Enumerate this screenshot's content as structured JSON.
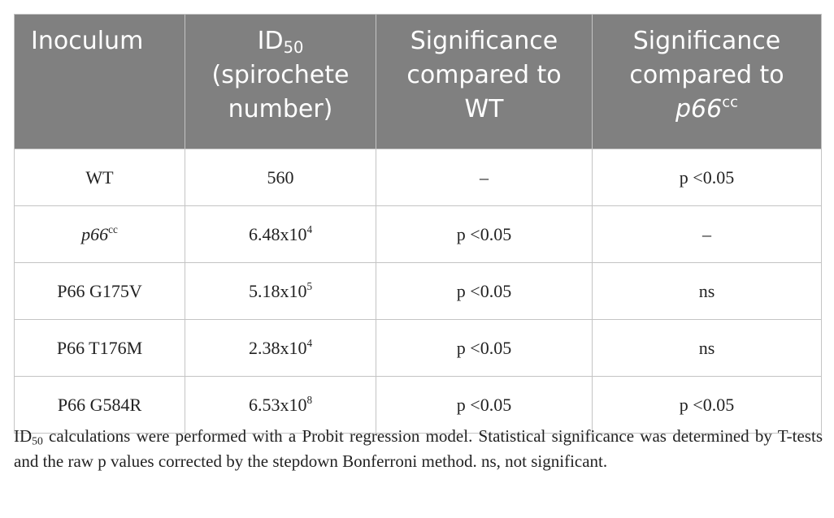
{
  "table": {
    "header": [
      {
        "text": "Inoculum"
      },
      {
        "text": "ID",
        "sub": "50",
        "text2": " (spirochete number)"
      },
      {
        "text": "Significance compared to WT"
      },
      {
        "text": "Significance compared to ",
        "italic": "p66",
        "sup": "cc"
      }
    ],
    "rows": [
      [
        {
          "text": "WT"
        },
        {
          "text": "560"
        },
        {
          "text": "–"
        },
        {
          "text": "p <0.05"
        }
      ],
      [
        {
          "italic": "p66",
          "sup": "cc"
        },
        {
          "text": "6.48x10",
          "sup": "4"
        },
        {
          "text": "p <0.05"
        },
        {
          "text": "–"
        }
      ],
      [
        {
          "text": "P66 G175V"
        },
        {
          "text": "5.18x10",
          "sup": "5"
        },
        {
          "text": "p <0.05"
        },
        {
          "text": "ns"
        }
      ],
      [
        {
          "text": "P66 T176M"
        },
        {
          "text": "2.38x10",
          "sup": "4"
        },
        {
          "text": "p <0.05"
        },
        {
          "text": "ns"
        }
      ],
      [
        {
          "text": "P66 G584R"
        },
        {
          "text": "6.53x10",
          "sup": "8"
        },
        {
          "text": "p <0.05"
        },
        {
          "text": "p <0.05"
        }
      ]
    ]
  },
  "footnote": {
    "text": "ID",
    "sub": "50",
    "text2": " calculations were performed with a Probit regression model. Statistical significance was determined by T-tests and the raw p values corrected by the stepdown Bonferroni method. ns, not significant."
  }
}
